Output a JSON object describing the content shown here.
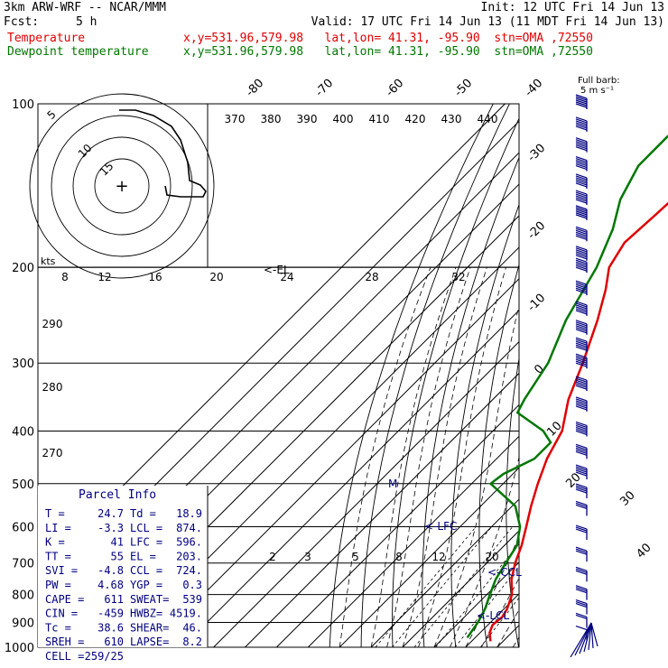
{
  "header": {
    "title": "3km ARW-WRF -- NCAR/MMM",
    "init": "Init: 12 UTC Fri 14 Jun 13",
    "fcst_label": "Fcst:",
    "fcst_value": "5 h",
    "valid": "Valid: 17 UTC Fri 14 Jun 13 (11 MDT Fri 14 Jun 13)",
    "temp_label": "Temperature",
    "dew_label": "Dewpoint temperature",
    "location": "x,y=531.96,579.98   lat,lon= 41.31, -95.90  stn=OMA ,72550",
    "temp_color": "#e00000",
    "dew_color": "#007700"
  },
  "wind_legend": {
    "line1": "Full barb:",
    "line2": "5 m s⁻¹"
  },
  "hodograph": {
    "units": "kts",
    "ring_labels": [
      "5",
      "10",
      "15"
    ],
    "marker": "+"
  },
  "parcel_info": {
    "title": "Parcel Info",
    "rows": [
      [
        "T  =",
        "24.7",
        "Td =",
        "18.9"
      ],
      [
        "LI =",
        "-3.3",
        "LCL =",
        "874."
      ],
      [
        "K  =",
        "41",
        "LFC =",
        "596."
      ],
      [
        "TT =",
        "55",
        "EL  =",
        "203."
      ],
      [
        "SVI =",
        "-4.8",
        "CCL =",
        "724."
      ],
      [
        "PW =",
        "4.68",
        "YGP =",
        "0.3"
      ],
      [
        "CAPE =",
        "611",
        "SWEAT=",
        "539"
      ],
      [
        "CIN =",
        "-459",
        "HWBZ=",
        "4519."
      ],
      [
        "Tc =",
        "38.6",
        "SHEAR=",
        "46."
      ],
      [
        "SREH =",
        "610",
        "LAPSE=",
        "8.2"
      ],
      [
        "CELL =",
        "259/25",
        "",
        ""
      ]
    ]
  },
  "annotations": {
    "el": "<-EL",
    "lfc": "<-LFC",
    "ccl": "<-CCL",
    "lcl": "<-LCL",
    "m": "M"
  },
  "chart_data": {
    "type": "line",
    "chart_kind": "skew-T log-P",
    "y_axis": "pressure (hPa)",
    "y_scale": "log",
    "ylim": [
      1000,
      100
    ],
    "pressure_ticks": [
      100,
      200,
      300,
      400,
      500,
      600,
      700,
      800,
      900,
      1000
    ],
    "isotherm_labels_top": [
      -80,
      -70,
      -60,
      -50,
      -40
    ],
    "isotherm_labels_right": [
      -30,
      -20,
      -10,
      0,
      10,
      20,
      30,
      40
    ],
    "theta_labels": [
      370,
      380,
      390,
      400,
      410,
      420,
      430,
      440
    ],
    "mixing_ratio_labels": [
      2,
      3,
      5,
      8,
      12,
      20
    ],
    "wind_speed_labels": [
      8,
      12,
      16,
      20,
      24,
      28,
      32
    ],
    "theta_left_labels": [
      290,
      280,
      270
    ],
    "series": [
      {
        "name": "Temperature",
        "color": "#e00000",
        "points": [
          [
            975,
            26
          ],
          [
            940,
            23
          ],
          [
            910,
            21.5
          ],
          [
            880,
            22
          ],
          [
            850,
            21
          ],
          [
            800,
            18
          ],
          [
            750,
            13
          ],
          [
            700,
            9
          ],
          [
            650,
            5.5
          ],
          [
            600,
            1
          ],
          [
            550,
            -4
          ],
          [
            500,
            -9
          ],
          [
            450,
            -14
          ],
          [
            400,
            -18
          ],
          [
            350,
            -26
          ],
          [
            300,
            -33
          ],
          [
            250,
            -42
          ],
          [
            220,
            -49
          ],
          [
            200,
            -55
          ],
          [
            180,
            -58
          ],
          [
            160,
            -57
          ],
          [
            140,
            -56
          ],
          [
            120,
            -58
          ],
          [
            110,
            -59
          ],
          [
            100,
            -60
          ]
        ]
      },
      {
        "name": "Dewpoint temperature",
        "color": "#007700",
        "points": [
          [
            960,
            17.5
          ],
          [
            900,
            16
          ],
          [
            850,
            14
          ],
          [
            800,
            11
          ],
          [
            750,
            8
          ],
          [
            700,
            6
          ],
          [
            650,
            4
          ],
          [
            600,
            -1
          ],
          [
            550,
            -9
          ],
          [
            500,
            -24
          ],
          [
            480,
            -23
          ],
          [
            450,
            -18
          ],
          [
            420,
            -18
          ],
          [
            400,
            -24
          ],
          [
            370,
            -38
          ],
          [
            350,
            -40
          ],
          [
            300,
            -44
          ],
          [
            250,
            -52
          ],
          [
            200,
            -59
          ],
          [
            170,
            -66
          ],
          [
            150,
            -73
          ],
          [
            130,
            -78
          ],
          [
            115,
            -78
          ],
          [
            100,
            -74
          ]
        ]
      }
    ],
    "winds_ms": [
      {
        "p": 100,
        "spd": 35
      },
      {
        "p": 110,
        "spd": 35
      },
      {
        "p": 120,
        "spd": 35
      },
      {
        "p": 130,
        "spd": 35
      },
      {
        "p": 140,
        "spd": 35
      },
      {
        "p": 150,
        "spd": 30
      },
      {
        "p": 160,
        "spd": 30
      },
      {
        "p": 175,
        "spd": 30
      },
      {
        "p": 190,
        "spd": 30
      },
      {
        "p": 200,
        "spd": 30
      },
      {
        "p": 220,
        "spd": 30
      },
      {
        "p": 240,
        "spd": 30
      },
      {
        "p": 260,
        "spd": 30
      },
      {
        "p": 280,
        "spd": 30
      },
      {
        "p": 300,
        "spd": 30
      },
      {
        "p": 330,
        "spd": 30
      },
      {
        "p": 360,
        "spd": 30
      },
      {
        "p": 400,
        "spd": 30
      },
      {
        "p": 440,
        "spd": 25
      },
      {
        "p": 480,
        "spd": 25
      },
      {
        "p": 520,
        "spd": 20
      },
      {
        "p": 560,
        "spd": 15
      },
      {
        "p": 620,
        "spd": 15
      },
      {
        "p": 680,
        "spd": 15
      },
      {
        "p": 740,
        "spd": 15
      },
      {
        "p": 800,
        "spd": 15
      },
      {
        "p": 850,
        "spd": 15
      },
      {
        "p": 900,
        "spd": 10
      },
      {
        "p": 950,
        "spd": 5
      }
    ],
    "hodograph_points": [
      [
        132,
        122
      ],
      [
        150,
        122
      ],
      [
        170,
        128
      ],
      [
        190,
        140
      ],
      [
        200,
        155
      ],
      [
        208,
        180
      ],
      [
        210,
        200
      ],
      [
        222,
        205
      ],
      [
        228,
        212
      ],
      [
        225,
        218
      ],
      [
        200,
        218
      ],
      [
        185,
        216
      ],
      [
        183,
        206
      ]
    ]
  }
}
